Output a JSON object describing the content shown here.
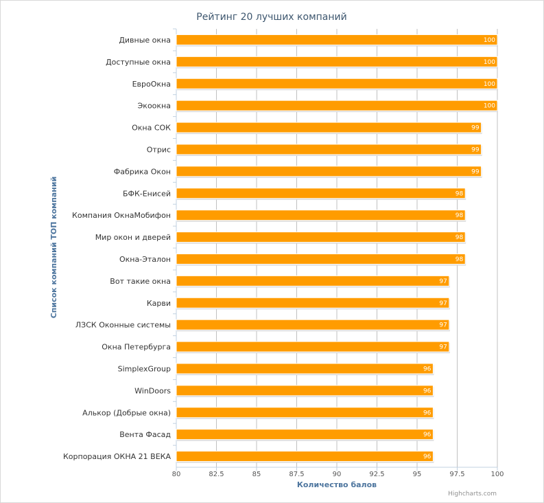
{
  "chart_data": {
    "type": "bar",
    "orientation": "horizontal",
    "title": "Рейтинг 20 лучших компаний",
    "xlabel": "Количество балов",
    "ylabel": "Список компаний ТОП компаний",
    "xlim": [
      80,
      100
    ],
    "tick_values": [
      80,
      82.5,
      85,
      87.5,
      90,
      92.5,
      95,
      97.5,
      100
    ],
    "tick_labels": [
      "80",
      "82.5",
      "85",
      "87.5",
      "90",
      "92.5",
      "95",
      "97.5",
      "100"
    ],
    "grid": true,
    "legend": "none",
    "bar_color": "#ff9c00",
    "categories": [
      "Дивные окна",
      "Доступные окна",
      "ЕвроОкна",
      "Экоокна",
      "Окна СОК",
      "Отрис",
      "Фабрика Окон",
      "БФК-Енисей",
      "Компания ОкнаМобифон",
      "Мир окон и дверей",
      "Окна-Эталон",
      "Вот такие окна",
      "Карви",
      "ЛЗСК Оконные системы",
      "Окна Петербурга",
      "SimplexGroup",
      "WinDoors",
      "Алькор (Добрые окна)",
      "Вента Фасад",
      "Корпорация ОКНА 21 ВЕКА"
    ],
    "values": [
      100,
      100,
      100,
      100,
      99,
      99,
      99,
      98,
      98,
      98,
      98,
      97,
      97,
      97,
      97,
      96,
      96,
      96,
      96,
      96
    ],
    "data_labels": [
      "100",
      "100",
      "100",
      "100",
      "99",
      "99",
      "99",
      "98",
      "98",
      "98",
      "98",
      "97",
      "97",
      "97",
      "97",
      "96",
      "96",
      "96",
      "96",
      "96"
    ]
  },
  "credits": "Highcharts.com"
}
